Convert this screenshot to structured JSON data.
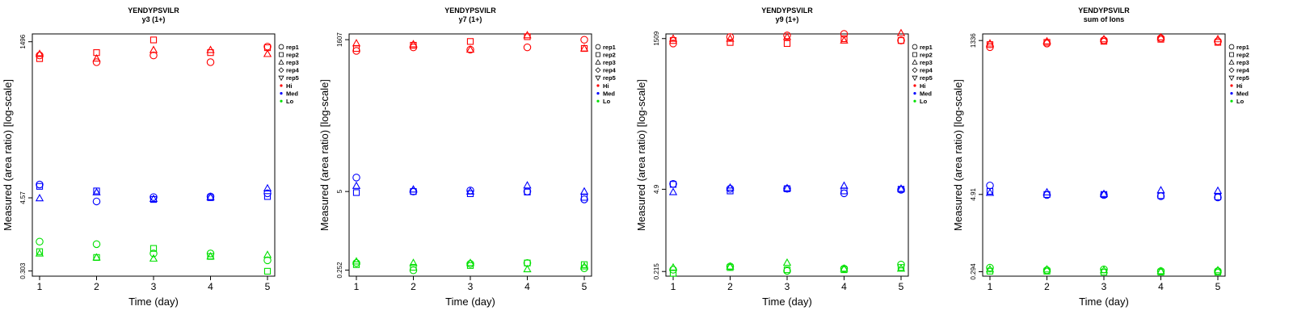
{
  "chart_data": [
    {
      "type": "scatter",
      "title": "YENDYPSVILR",
      "subtitle": "y3 (1+)",
      "xlabel": "Time (day)",
      "ylabel": "Measured (area ratio) [log-scale]",
      "scale": "log",
      "x_ticks": [
        "1",
        "2",
        "3",
        "4",
        "5"
      ],
      "y_ticks": [
        "0.303",
        "4.57",
        "1496"
      ],
      "ylim": [
        0.25,
        2000
      ],
      "legend": [
        "rep1",
        "rep2",
        "rep3",
        "rep4",
        "rep5",
        "Hi",
        "Med",
        "Lo"
      ],
      "series": [
        {
          "level": "Hi",
          "rep": "rep1",
          "x": [
            1,
            2,
            3,
            4,
            5
          ],
          "y": [
            900,
            700,
            900,
            700,
            1250
          ]
        },
        {
          "level": "Hi",
          "rep": "rep2",
          "x": [
            1,
            2,
            3,
            4,
            5
          ],
          "y": [
            800,
            1000,
            1600,
            1000,
            1200
          ]
        },
        {
          "level": "Hi",
          "rep": "rep3",
          "x": [
            1,
            2,
            3,
            4,
            5
          ],
          "y": [
            950,
            800,
            1100,
            1100,
            950
          ]
        },
        {
          "level": "Med",
          "rep": "rep1",
          "x": [
            1,
            2,
            3,
            4,
            5
          ],
          "y": [
            7.5,
            4.0,
            4.7,
            4.8,
            5.4
          ]
        },
        {
          "level": "Med",
          "rep": "rep2",
          "x": [
            1,
            2,
            3,
            4,
            5
          ],
          "y": [
            7.0,
            5.9,
            4.3,
            4.6,
            4.8
          ]
        },
        {
          "level": "Med",
          "rep": "rep3",
          "x": [
            1,
            2,
            3,
            4,
            5
          ],
          "y": [
            4.5,
            5.6,
            4.4,
            4.7,
            6.5
          ]
        },
        {
          "level": "Lo",
          "rep": "rep1",
          "x": [
            1,
            2,
            3,
            4,
            5
          ],
          "y": [
            0.9,
            0.82,
            0.58,
            0.58,
            0.45
          ]
        },
        {
          "level": "Lo",
          "rep": "rep2",
          "x": [
            1,
            2,
            3,
            4,
            5
          ],
          "y": [
            0.62,
            0.5,
            0.7,
            0.52,
            0.3
          ]
        },
        {
          "level": "Lo",
          "rep": "rep3",
          "x": [
            1,
            2,
            3,
            4,
            5
          ],
          "y": [
            0.58,
            0.5,
            0.48,
            0.52,
            0.55
          ]
        }
      ]
    },
    {
      "type": "scatter",
      "title": "YENDYPSVILR",
      "subtitle": "y7 (1+)",
      "xlabel": "Time (day)",
      "ylabel": "Measured (area ratio) [log-scale]",
      "scale": "log",
      "x_ticks": [
        "1",
        "2",
        "3",
        "4",
        "5"
      ],
      "y_ticks": [
        "0.252",
        "5",
        "1607"
      ],
      "ylim": [
        0.2,
        2000
      ],
      "legend": [
        "rep1",
        "rep2",
        "rep3",
        "rep4",
        "rep5",
        "Hi",
        "Med",
        "Lo"
      ],
      "series": [
        {
          "level": "Hi",
          "rep": "rep1",
          "x": [
            1,
            2,
            3,
            4,
            5
          ],
          "y": [
            1050,
            1200,
            1100,
            1200,
            1600
          ]
        },
        {
          "level": "Hi",
          "rep": "rep2",
          "x": [
            1,
            2,
            3,
            4,
            5
          ],
          "y": [
            1150,
            1300,
            1500,
            1800,
            1150
          ]
        },
        {
          "level": "Hi",
          "rep": "rep3",
          "x": [
            1,
            2,
            3,
            4,
            5
          ],
          "y": [
            1400,
            1350,
            1100,
            1900,
            1150
          ]
        },
        {
          "level": "Med",
          "rep": "rep1",
          "x": [
            1,
            2,
            3,
            4,
            5
          ],
          "y": [
            8.5,
            5.0,
            5.2,
            5.0,
            3.7
          ]
        },
        {
          "level": "Med",
          "rep": "rep2",
          "x": [
            1,
            2,
            3,
            4,
            5
          ],
          "y": [
            4.8,
            5.0,
            4.6,
            4.9,
            4.0
          ]
        },
        {
          "level": "Med",
          "rep": "rep3",
          "x": [
            1,
            2,
            3,
            4,
            5
          ],
          "y": [
            6.2,
            5.4,
            5.0,
            6.3,
            5.0
          ]
        },
        {
          "level": "Lo",
          "rep": "rep1",
          "x": [
            1,
            2,
            3,
            4,
            5
          ],
          "y": [
            0.33,
            0.25,
            0.32,
            0.33,
            0.27
          ]
        },
        {
          "level": "Lo",
          "rep": "rep2",
          "x": [
            1,
            2,
            3,
            4,
            5
          ],
          "y": [
            0.31,
            0.28,
            0.3,
            0.33,
            0.31
          ]
        },
        {
          "level": "Lo",
          "rep": "rep3",
          "x": [
            1,
            2,
            3,
            4,
            5
          ],
          "y": [
            0.35,
            0.33,
            0.33,
            0.26,
            0.29
          ]
        }
      ]
    },
    {
      "type": "scatter",
      "title": "YENDYPSVILR",
      "subtitle": "y9 (1+)",
      "xlabel": "Time (day)",
      "ylabel": "Measured (area ratio) [log-scale]",
      "scale": "log",
      "x_ticks": [
        "1",
        "2",
        "3",
        "4",
        "5"
      ],
      "y_ticks": [
        "0.215",
        "4.9",
        "1509"
      ],
      "ylim": [
        0.18,
        1800
      ],
      "legend": [
        "rep1",
        "rep2",
        "rep3",
        "rep4",
        "rep5",
        "Hi",
        "Med",
        "Lo"
      ],
      "series": [
        {
          "level": "Hi",
          "rep": "rep1",
          "x": [
            1,
            2,
            3,
            4,
            5
          ],
          "y": [
            1250,
            1600,
            1700,
            1800,
            1400
          ]
        },
        {
          "level": "Hi",
          "rep": "rep2",
          "x": [
            1,
            2,
            3,
            4,
            5
          ],
          "y": [
            1400,
            1300,
            1250,
            1500,
            1400
          ]
        },
        {
          "level": "Hi",
          "rep": "rep3",
          "x": [
            1,
            2,
            3,
            4,
            5
          ],
          "y": [
            1500,
            1500,
            1600,
            1400,
            1850
          ]
        },
        {
          "level": "Med",
          "rep": "rep1",
          "x": [
            1,
            2,
            3,
            4,
            5
          ],
          "y": [
            6.0,
            5.0,
            5.0,
            4.2,
            4.8
          ]
        },
        {
          "level": "Med",
          "rep": "rep2",
          "x": [
            1,
            2,
            3,
            4,
            5
          ],
          "y": [
            5.9,
            4.6,
            5.0,
            4.6,
            4.9
          ]
        },
        {
          "level": "Med",
          "rep": "rep3",
          "x": [
            1,
            2,
            3,
            4,
            5
          ],
          "y": [
            4.4,
            5.2,
            5.1,
            5.6,
            5.0
          ]
        },
        {
          "level": "Lo",
          "rep": "rep1",
          "x": [
            1,
            2,
            3,
            4,
            5
          ],
          "y": [
            0.23,
            0.26,
            0.22,
            0.24,
            0.28
          ]
        },
        {
          "level": "Lo",
          "rep": "rep2",
          "x": [
            1,
            2,
            3,
            4,
            5
          ],
          "y": [
            0.2,
            0.25,
            0.23,
            0.23,
            0.25
          ]
        },
        {
          "level": "Lo",
          "rep": "rep3",
          "x": [
            1,
            2,
            3,
            4,
            5
          ],
          "y": [
            0.25,
            0.26,
            0.3,
            0.24,
            0.24
          ]
        }
      ]
    },
    {
      "type": "scatter",
      "title": "YENDYPSVILR",
      "subtitle": "sum of Ions",
      "xlabel": "Time (day)",
      "ylabel": "Measured (area ratio) [log-scale]",
      "scale": "log",
      "x_ticks": [
        "1",
        "2",
        "3",
        "4",
        "5"
      ],
      "y_ticks": [
        "0.294",
        "4.91",
        "1336"
      ],
      "ylim": [
        0.25,
        1700
      ],
      "legend": [
        "rep1",
        "rep2",
        "rep3",
        "rep4",
        "rep5",
        "Hi",
        "Med",
        "Lo"
      ],
      "series": [
        {
          "level": "Hi",
          "rep": "rep1",
          "x": [
            1,
            2,
            3,
            4,
            5
          ],
          "y": [
            1050,
            1200,
            1350,
            1450,
            1300
          ]
        },
        {
          "level": "Hi",
          "rep": "rep2",
          "x": [
            1,
            2,
            3,
            4,
            5
          ],
          "y": [
            1150,
            1250,
            1300,
            1400,
            1250
          ]
        },
        {
          "level": "Hi",
          "rep": "rep3",
          "x": [
            1,
            2,
            3,
            4,
            5
          ],
          "y": [
            1200,
            1300,
            1400,
            1500,
            1400
          ]
        },
        {
          "level": "Med",
          "rep": "rep1",
          "x": [
            1,
            2,
            3,
            4,
            5
          ],
          "y": [
            6.8,
            4.8,
            4.8,
            4.6,
            4.4
          ]
        },
        {
          "level": "Med",
          "rep": "rep2",
          "x": [
            1,
            2,
            3,
            4,
            5
          ],
          "y": [
            5.5,
            4.9,
            4.9,
            4.7,
            4.5
          ]
        },
        {
          "level": "Med",
          "rep": "rep3",
          "x": [
            1,
            2,
            3,
            4,
            5
          ],
          "y": [
            5.2,
            5.3,
            5.0,
            5.7,
            5.6
          ]
        },
        {
          "level": "Lo",
          "rep": "rep1",
          "x": [
            1,
            2,
            3,
            4,
            5
          ],
          "y": [
            0.34,
            0.31,
            0.32,
            0.3,
            0.3
          ]
        },
        {
          "level": "Lo",
          "rep": "rep2",
          "x": [
            1,
            2,
            3,
            4,
            5
          ],
          "y": [
            0.3,
            0.3,
            0.29,
            0.29,
            0.29
          ]
        },
        {
          "level": "Lo",
          "rep": "rep3",
          "x": [
            1,
            2,
            3,
            4,
            5
          ],
          "y": [
            0.32,
            0.32,
            0.31,
            0.3,
            0.31
          ]
        }
      ]
    }
  ],
  "colors": {
    "Hi": "#ff0000",
    "Med": "#0000ff",
    "Lo": "#00e000"
  }
}
